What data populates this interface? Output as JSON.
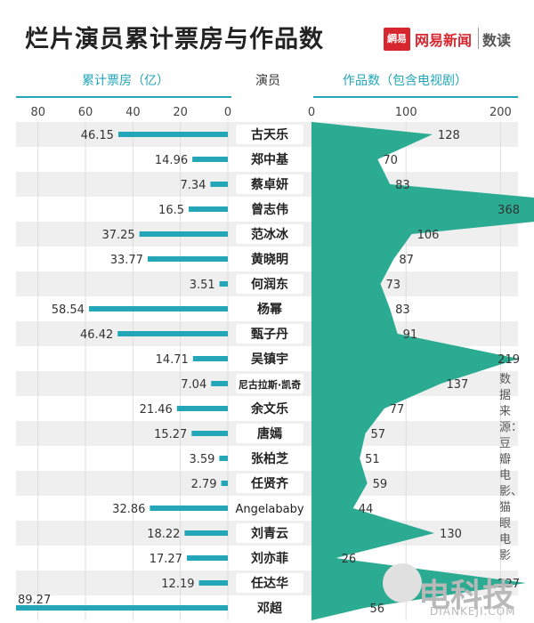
{
  "header": {
    "title": "烂片演员累计票房与作品数",
    "logo_icon_text": "網易",
    "logo_name": "网易新闻",
    "logo_sub": "数读"
  },
  "colors": {
    "bar": "#22a6b8",
    "area": "#2bab92",
    "row_stripe": "#efefef"
  },
  "chart_data": [
    {
      "type": "bar",
      "orientation": "horizontal",
      "axis_direction": "right-to-left",
      "xlabel": "累计票房（亿）",
      "xlim": [
        0,
        89.27
      ],
      "ticks": [
        80,
        60,
        40,
        20,
        0
      ],
      "categories": [
        "古天乐",
        "郑中基",
        "蔡卓妍",
        "曾志伟",
        "范冰冰",
        "黄晓明",
        "何润东",
        "杨幂",
        "甄子丹",
        "吴镇宇",
        "尼古拉斯·凯奇",
        "余文乐",
        "唐嫣",
        "张柏芝",
        "任贤齐",
        "Angelababy",
        "刘青云",
        "刘亦菲",
        "任达华",
        "邓超"
      ],
      "values": [
        46.15,
        14.96,
        7.34,
        16.5,
        37.25,
        33.77,
        3.51,
        58.54,
        46.42,
        14.71,
        7.04,
        21.46,
        15.27,
        3.59,
        2.79,
        32.86,
        18.22,
        17.27,
        12.19,
        89.27
      ]
    },
    {
      "type": "area",
      "xlabel": "作品数（包含电视剧）",
      "xlim": [
        0,
        370
      ],
      "ticks": [
        0,
        100,
        200,
        300
      ],
      "categories": [
        "古天乐",
        "郑中基",
        "蔡卓妍",
        "曾志伟",
        "范冰冰",
        "黄晓明",
        "何润东",
        "杨幂",
        "甄子丹",
        "吴镇宇",
        "尼古拉斯·凯奇",
        "余文乐",
        "唐嫣",
        "张柏芝",
        "任贤齐",
        "Angelababy",
        "刘青云",
        "刘亦菲",
        "任达华",
        "邓超"
      ],
      "values": [
        128,
        70,
        83,
        368,
        106,
        87,
        73,
        83,
        91,
        219,
        137,
        77,
        57,
        51,
        59,
        44,
        130,
        26,
        227,
        56
      ]
    }
  ],
  "labels": {
    "actor_header": "演员"
  },
  "source_note": "数据来源：豆瓣电影、猫眼电影",
  "watermark": {
    "name": "电科技",
    "site": "DIANKEJI.COM"
  }
}
